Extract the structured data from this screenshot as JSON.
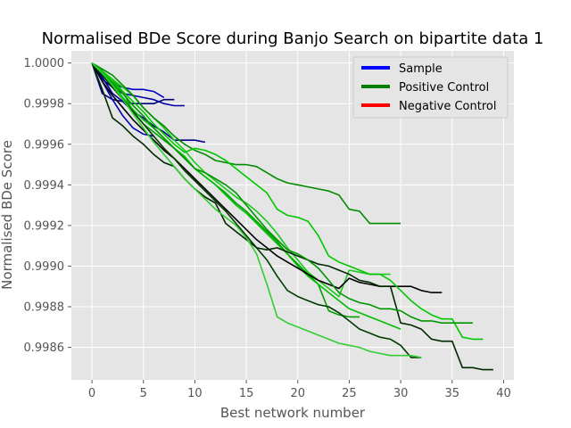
{
  "chart_data": {
    "type": "line",
    "title": "Normalised BDe Score during Banjo Search on bipartite data 1",
    "xlabel": "Best network number",
    "ylabel": "Normalised BDe Score",
    "xlim": [
      -2,
      41
    ],
    "ylim": [
      0.99844,
      1.00006
    ],
    "x_ticks": [
      0,
      5,
      10,
      15,
      20,
      25,
      30,
      35,
      40
    ],
    "x_tick_labels": [
      "0",
      "5",
      "10",
      "15",
      "20",
      "25",
      "30",
      "35",
      "40"
    ],
    "y_ticks": [
      0.9986,
      0.9988,
      0.999,
      0.9992,
      0.9994,
      0.9996,
      0.9998,
      1.0
    ],
    "y_tick_labels": [
      "0.9986",
      "0.9988",
      "0.9990",
      "0.9992",
      "0.9994",
      "0.9996",
      "0.9998",
      "1.0000"
    ],
    "grid": true,
    "legend_position": "top-right",
    "legend": [
      {
        "label": "Sample",
        "color": "#0000ff"
      },
      {
        "label": "Positive Control",
        "color": "#008000"
      },
      {
        "label": "Negative Control",
        "color": "#ff0000"
      }
    ],
    "series": [
      {
        "color": "#00007a",
        "x": [
          0,
          1,
          2,
          3,
          4,
          5,
          6,
          7,
          8
        ],
        "y": [
          1.0,
          0.99985,
          0.99982,
          0.99981,
          0.9998,
          0.9998,
          0.9998,
          0.99982,
          0.99982
        ]
      },
      {
        "color": "#0000a8",
        "x": [
          0,
          1,
          2,
          3,
          4,
          5,
          6,
          7,
          8,
          9
        ],
        "y": [
          1.0,
          0.99992,
          0.99988,
          0.99985,
          0.99984,
          0.99983,
          0.99982,
          0.9998,
          0.99979,
          0.99979
        ]
      },
      {
        "color": "#0000c8",
        "x": [
          0,
          1,
          2,
          3,
          4,
          5,
          6,
          7
        ],
        "y": [
          1.0,
          0.99994,
          0.9999,
          0.99988,
          0.99987,
          0.99987,
          0.99986,
          0.99983
        ]
      },
      {
        "color": "#00008c",
        "x": [
          0,
          1,
          2,
          3,
          4,
          5,
          6,
          7,
          8,
          9,
          10,
          11
        ],
        "y": [
          1.0,
          0.99993,
          0.99985,
          0.99981,
          0.99976,
          0.99973,
          0.99969,
          0.99966,
          0.99962,
          0.99962,
          0.99962,
          0.99961
        ]
      },
      {
        "color": "#0000b4",
        "x": [
          0,
          1,
          2,
          3,
          4,
          5,
          6
        ],
        "y": [
          1.0,
          0.99991,
          0.99982,
          0.99974,
          0.99968,
          0.99965,
          0.99964
        ]
      },
      {
        "color": "#00a000",
        "x": [
          0,
          1,
          2,
          3,
          4,
          5,
          6,
          7,
          8,
          9,
          10,
          11,
          12,
          13,
          14,
          15,
          16,
          17,
          18,
          19,
          20,
          21,
          22,
          23,
          24,
          25,
          26
        ],
        "y": [
          1.0,
          0.99996,
          0.99992,
          0.99986,
          0.99976,
          0.9997,
          0.99966,
          0.99962,
          0.99958,
          0.99953,
          0.99948,
          0.99944,
          0.9994,
          0.99936,
          0.99931,
          0.99927,
          0.99922,
          0.99917,
          0.99912,
          0.99906,
          0.99901,
          0.99896,
          0.99891,
          0.99878,
          0.99876,
          0.99875,
          0.99875
        ]
      },
      {
        "color": "#1ec81e",
        "x": [
          0,
          1,
          2,
          3,
          4,
          5,
          6,
          7,
          8,
          9,
          10,
          11,
          12,
          13,
          14,
          15,
          16,
          17,
          18,
          19,
          20,
          21,
          22,
          23,
          24,
          25,
          26,
          27,
          28,
          29
        ],
        "y": [
          1.0,
          0.99996,
          0.99992,
          0.99988,
          0.99984,
          0.99978,
          0.99973,
          0.99968,
          0.99962,
          0.99957,
          0.99951,
          0.99946,
          0.99942,
          0.99938,
          0.99934,
          0.99931,
          0.99927,
          0.99922,
          0.99916,
          0.99909,
          0.99903,
          0.99897,
          0.99893,
          0.99889,
          0.99885,
          0.99898,
          0.99897,
          0.99896,
          0.99896,
          0.99896
        ]
      },
      {
        "color": "#008c00",
        "x": [
          0,
          1,
          2,
          3,
          4,
          5,
          6,
          7,
          8,
          9,
          10,
          11,
          12,
          13,
          14,
          15,
          16,
          17,
          18,
          19,
          20,
          21,
          22,
          23,
          24,
          25,
          26,
          27,
          28,
          29,
          30
        ],
        "y": [
          1.0,
          0.99997,
          0.99994,
          0.99989,
          0.99984,
          0.99978,
          0.99973,
          0.99969,
          0.99964,
          0.9996,
          0.99957,
          0.99955,
          0.99952,
          0.99951,
          0.9995,
          0.9995,
          0.99949,
          0.99946,
          0.99943,
          0.99941,
          0.9994,
          0.99939,
          0.99938,
          0.99937,
          0.99935,
          0.99928,
          0.99927,
          0.99921,
          0.99921,
          0.99921,
          0.99921
        ]
      },
      {
        "color": "#00be00",
        "x": [
          0,
          1,
          2,
          3,
          4,
          5,
          6,
          7,
          8,
          9,
          10,
          11,
          12,
          13,
          14,
          15,
          16,
          17,
          18,
          19,
          20,
          21,
          22,
          23,
          24,
          25,
          26,
          27,
          28,
          29,
          30
        ],
        "y": [
          1.0,
          0.99995,
          0.9999,
          0.99983,
          0.99977,
          0.99972,
          0.99968,
          0.99963,
          0.99958,
          0.99954,
          0.99948,
          0.99944,
          0.9994,
          0.99935,
          0.9993,
          0.99926,
          0.99921,
          0.99916,
          0.99911,
          0.99906,
          0.999,
          0.99895,
          0.99891,
          0.99887,
          0.99883,
          0.99879,
          0.99877,
          0.99875,
          0.99873,
          0.99871,
          0.99869
        ]
      },
      {
        "color": "#000000",
        "x": [
          0,
          1,
          2,
          3,
          4,
          5,
          6,
          7,
          8,
          9,
          10,
          11,
          12,
          13,
          14,
          15,
          16,
          17,
          18,
          19,
          20,
          21,
          22,
          23,
          24,
          25,
          26,
          27,
          28,
          29,
          30,
          31,
          32,
          33,
          34
        ],
        "y": [
          1.0,
          0.99991,
          0.99984,
          0.99978,
          0.99972,
          0.99967,
          0.99962,
          0.99957,
          0.99953,
          0.99948,
          0.99943,
          0.99938,
          0.99933,
          0.99928,
          0.99923,
          0.99918,
          0.99913,
          0.99909,
          0.99905,
          0.99902,
          0.99899,
          0.99896,
          0.99893,
          0.99891,
          0.99889,
          0.99894,
          0.99892,
          0.99891,
          0.9989,
          0.9989,
          0.9989,
          0.9989,
          0.99888,
          0.99887,
          0.99887
        ]
      },
      {
        "color": "#003c00",
        "x": [
          0,
          1,
          2,
          3,
          4,
          5,
          6,
          7,
          8,
          9,
          10,
          11,
          12,
          13,
          14,
          15,
          16,
          17,
          18,
          19,
          20,
          21,
          22,
          23,
          24,
          25,
          26,
          27,
          28,
          29,
          30,
          31,
          32
        ],
        "y": [
          1.0,
          0.99994,
          0.99988,
          0.99982,
          0.99976,
          0.9997,
          0.99964,
          0.99958,
          0.99953,
          0.99947,
          0.99942,
          0.99937,
          0.99932,
          0.99927,
          0.99921,
          0.99915,
          0.99909,
          0.99903,
          0.99895,
          0.99888,
          0.99885,
          0.99883,
          0.99881,
          0.9988,
          0.99877,
          0.99873,
          0.99869,
          0.99867,
          0.99865,
          0.99864,
          0.99861,
          0.99855,
          0.99855
        ]
      },
      {
        "color": "#00c800",
        "x": [
          0,
          1,
          2,
          3,
          4,
          5,
          6,
          7,
          8,
          9,
          10,
          11,
          12,
          13,
          14,
          15,
          16,
          17,
          18,
          19,
          20,
          21,
          22,
          23,
          24,
          25,
          26,
          27,
          28,
          29,
          30,
          31,
          32,
          33,
          34,
          35,
          36,
          37,
          38
        ],
        "y": [
          1.0,
          0.99996,
          0.99991,
          0.99986,
          0.99981,
          0.99976,
          0.9997,
          0.99965,
          0.9996,
          0.99956,
          0.99958,
          0.99957,
          0.99955,
          0.99952,
          0.99948,
          0.99944,
          0.9994,
          0.99936,
          0.99928,
          0.99925,
          0.99924,
          0.99922,
          0.99915,
          0.99905,
          0.99902,
          0.999,
          0.99898,
          0.99896,
          0.99896,
          0.99893,
          0.99888,
          0.99883,
          0.99879,
          0.99876,
          0.99874,
          0.99874,
          0.99865,
          0.99864,
          0.99864
        ]
      },
      {
        "color": "#002800",
        "x": [
          0,
          1,
          2,
          3,
          4,
          5,
          6,
          7,
          8,
          9,
          10,
          11,
          12,
          13,
          14,
          15,
          16,
          17,
          18,
          19,
          20,
          21,
          22,
          23,
          24,
          25,
          26,
          27,
          28,
          29,
          30,
          31,
          32,
          33,
          34,
          35,
          36,
          37,
          38,
          39
        ],
        "y": [
          1.0,
          0.99987,
          0.99973,
          0.99969,
          0.99964,
          0.9996,
          0.99955,
          0.99951,
          0.99949,
          0.99943,
          0.99938,
          0.99934,
          0.99931,
          0.99921,
          0.99917,
          0.99913,
          0.99909,
          0.99908,
          0.99909,
          0.99907,
          0.99905,
          0.99903,
          0.99901,
          0.999,
          0.99898,
          0.99896,
          0.99893,
          0.99892,
          0.9989,
          0.9989,
          0.99872,
          0.99871,
          0.99869,
          0.99864,
          0.99863,
          0.99863,
          0.9985,
          0.9985,
          0.99849,
          0.99849
        ]
      },
      {
        "color": "#009600",
        "x": [
          0,
          1,
          2,
          3,
          4,
          5,
          6,
          7,
          8,
          9,
          10,
          11,
          12,
          13,
          14,
          15,
          16,
          17,
          18,
          19,
          20,
          21,
          22,
          23,
          24,
          25,
          26,
          27,
          28,
          29,
          30,
          31,
          32,
          33,
          34,
          35,
          36,
          37
        ],
        "y": [
          1.0,
          0.99995,
          0.9999,
          0.99985,
          0.99979,
          0.99974,
          0.99968,
          0.99963,
          0.99958,
          0.99953,
          0.99948,
          0.99946,
          0.99943,
          0.9994,
          0.99936,
          0.9993,
          0.99924,
          0.99918,
          0.99913,
          0.99908,
          0.99906,
          0.99903,
          0.99899,
          0.99893,
          0.99887,
          0.99884,
          0.99882,
          0.99881,
          0.99879,
          0.99879,
          0.99878,
          0.99875,
          0.99873,
          0.99873,
          0.99872,
          0.99872,
          0.99872,
          0.99872
        ]
      },
      {
        "color": "#32cd32",
        "x": [
          0,
          1,
          2,
          3,
          4,
          5,
          6,
          7,
          8,
          9,
          10,
          11,
          12,
          13,
          14,
          15,
          16,
          17,
          18,
          19,
          20,
          21,
          22,
          23,
          24,
          25,
          26,
          27,
          28,
          29,
          30,
          31,
          32
        ],
        "y": [
          1.0,
          0.99995,
          0.99989,
          0.99982,
          0.99975,
          0.99968,
          0.99961,
          0.99955,
          0.99949,
          0.99943,
          0.99938,
          0.99933,
          0.99928,
          0.99924,
          0.9992,
          0.99914,
          0.99906,
          0.99891,
          0.99875,
          0.99872,
          0.9987,
          0.99868,
          0.99866,
          0.99864,
          0.99862,
          0.99861,
          0.9986,
          0.99858,
          0.99857,
          0.99856,
          0.99856,
          0.99856,
          0.99855
        ]
      }
    ]
  }
}
